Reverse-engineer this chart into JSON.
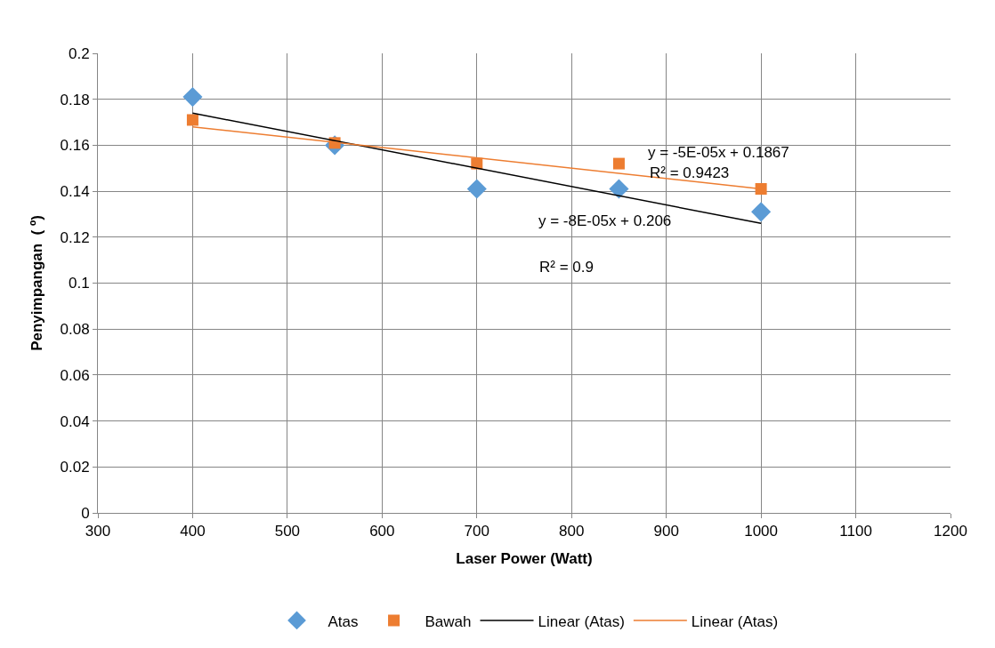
{
  "chart_data": {
    "type": "scatter",
    "xlabel": "Laser Power (Watt)",
    "ylabel": "Penyimpangan  ( º)",
    "xlim": [
      300,
      1200
    ],
    "xticks": [
      300,
      400,
      500,
      600,
      700,
      800,
      900,
      1000,
      1100,
      1200
    ],
    "ylim": [
      0,
      0.2
    ],
    "yticks": [
      0,
      0.02,
      0.04,
      0.06,
      0.08,
      0.1,
      0.12,
      0.14,
      0.16,
      0.18,
      0.2
    ],
    "grid": true,
    "legend": "bottom",
    "series": [
      {
        "name": "Atas",
        "color": "#5b9bd5",
        "marker": "diamond",
        "x": [
          400,
          550,
          700,
          850,
          1000
        ],
        "values": [
          0.181,
          0.16,
          0.141,
          0.141,
          0.131
        ]
      },
      {
        "name": "Bawah",
        "color": "#ed7d31",
        "marker": "square",
        "x": [
          400,
          550,
          700,
          850,
          1000
        ],
        "values": [
          0.171,
          0.161,
          0.152,
          0.152,
          0.141
        ]
      },
      {
        "name": "Linear (Atas)",
        "type": "line",
        "color": "#000000",
        "marker": "none",
        "x": [
          400,
          1000
        ],
        "values": [
          0.174,
          0.126
        ]
      },
      {
        "name": "Linear (Atas)",
        "type": "line",
        "color": "#ed7d31",
        "marker": "none",
        "x": [
          400,
          1000
        ],
        "values": [
          0.168,
          0.141
        ]
      }
    ],
    "annotations": [
      "y = -5E-05x + 0.1867",
      "R² = 0.9423",
      "y = -8E-05x + 0.206",
      "R² = 0.9"
    ]
  }
}
